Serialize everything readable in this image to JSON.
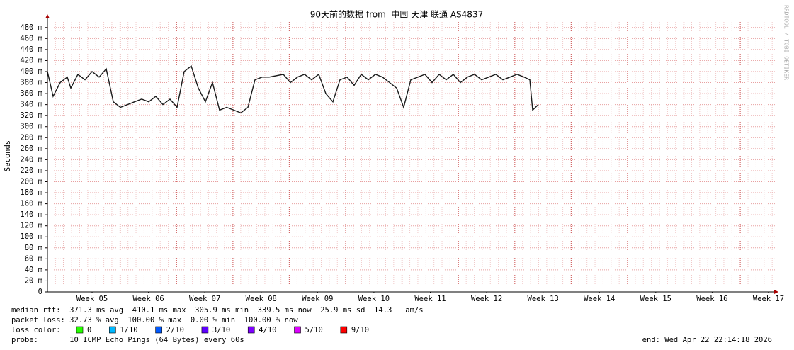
{
  "chart_data": {
    "type": "line",
    "title": "90天前的数据 from  中国 天津 联通 AS4837",
    "y_label": "Seconds",
    "watermark": "RRDTOOL / TOBI OETIKER",
    "xlim": [
      4.208,
      17.126
    ],
    "xticks": [
      {
        "value": 5,
        "label": "Week 05"
      },
      {
        "value": 6,
        "label": "Week 06"
      },
      {
        "value": 7,
        "label": "Week 07"
      },
      {
        "value": 8,
        "label": "Week 08"
      },
      {
        "value": 9,
        "label": "Week 09"
      },
      {
        "value": 10,
        "label": "Week 10"
      },
      {
        "value": 11,
        "label": "Week 11"
      },
      {
        "value": 12,
        "label": "Week 12"
      },
      {
        "value": 13,
        "label": "Week 13"
      },
      {
        "value": 14,
        "label": "Week 14"
      },
      {
        "value": 15,
        "label": "Week 15"
      },
      {
        "value": 16,
        "label": "Week 16"
      },
      {
        "value": 17,
        "label": "Week 17"
      }
    ],
    "ylim": [
      0,
      0.49
    ],
    "yticks": [
      0,
      {
        "value": 0.02,
        "label": "20 m"
      },
      {
        "value": 0.04,
        "label": "40 m"
      },
      {
        "value": 0.06,
        "label": "60 m"
      },
      {
        "value": 0.08,
        "label": "80 m"
      },
      {
        "value": 0.1,
        "label": "100 m"
      },
      {
        "value": 0.12,
        "label": "120 m"
      },
      {
        "value": 0.14,
        "label": "140 m"
      },
      {
        "value": 0.16,
        "label": "160 m"
      },
      {
        "value": 0.18,
        "label": "180 m"
      },
      {
        "value": 0.2,
        "label": "200 m"
      },
      {
        "value": 0.22,
        "label": "220 m"
      },
      {
        "value": 0.24,
        "label": "240 m"
      },
      {
        "value": 0.26,
        "label": "260 m"
      },
      {
        "value": 0.28,
        "label": "280 m"
      },
      {
        "value": 0.3,
        "label": "300 m"
      },
      {
        "value": 0.32,
        "label": "320 m"
      },
      {
        "value": 0.34,
        "label": "340 m"
      },
      {
        "value": 0.36,
        "label": "360 m"
      },
      {
        "value": 0.38,
        "label": "380 m"
      },
      {
        "value": 0.4,
        "label": "400 m"
      },
      {
        "value": 0.42,
        "label": "420 m"
      },
      {
        "value": 0.44,
        "label": "440 m"
      },
      {
        "value": 0.46,
        "label": "460 m"
      },
      {
        "value": 0.48,
        "label": "480 m"
      }
    ],
    "grid": true,
    "x": [
      4.208,
      4.309,
      4.434,
      4.56,
      4.623,
      4.748,
      4.874,
      5.0,
      5.125,
      5.251,
      5.377,
      5.502,
      5.628,
      5.754,
      5.879,
      6.005,
      6.131,
      6.256,
      6.382,
      6.508,
      6.633,
      6.759,
      6.885,
      7.01,
      7.136,
      7.262,
      7.387,
      7.513,
      7.639,
      7.764,
      7.89,
      8.016,
      8.141,
      8.393,
      8.518,
      8.644,
      8.769,
      8.895,
      9.021,
      9.146,
      9.272,
      9.398,
      9.523,
      9.649,
      9.775,
      9.9,
      10.026,
      10.152,
      10.277,
      10.403,
      10.528,
      10.654,
      10.78,
      10.905,
      11.031,
      11.157,
      11.282,
      11.408,
      11.534,
      11.659,
      11.785,
      11.911,
      12.036,
      12.162,
      12.288,
      12.413,
      12.539,
      12.665,
      12.765,
      12.816,
      12.916
    ],
    "series": [
      {
        "name": "median rtt",
        "color": "#1a1a1a",
        "values": [
          0.4,
          0.355,
          0.38,
          0.39,
          0.37,
          0.395,
          0.385,
          0.4,
          0.39,
          0.405,
          0.345,
          0.335,
          0.34,
          0.345,
          0.35,
          0.345,
          0.355,
          0.34,
          0.35,
          0.335,
          0.4,
          0.41,
          0.37,
          0.345,
          0.38,
          0.33,
          0.335,
          0.33,
          0.325,
          0.335,
          0.385,
          0.39,
          0.39,
          0.395,
          0.38,
          0.39,
          0.395,
          0.385,
          0.395,
          0.36,
          0.345,
          0.385,
          0.39,
          0.375,
          0.395,
          0.385,
          0.395,
          0.39,
          0.38,
          0.37,
          0.335,
          0.385,
          0.39,
          0.395,
          0.38,
          0.395,
          0.385,
          0.395,
          0.38,
          0.39,
          0.395,
          0.385,
          0.39,
          0.395,
          0.385,
          0.39,
          0.395,
          0.39,
          0.385,
          0.33,
          0.34
        ]
      }
    ],
    "loss_colors": [
      {
        "label": "0",
        "color": "#26ff00"
      },
      {
        "label": "1/10",
        "color": "#00b8ff"
      },
      {
        "label": "2/10",
        "color": "#0059ff"
      },
      {
        "label": "3/10",
        "color": "#5e00ff"
      },
      {
        "label": "4/10",
        "color": "#7e00ff"
      },
      {
        "label": "5/10",
        "color": "#dd00ff"
      },
      {
        "label": "9/10",
        "color": "#ff0000"
      }
    ]
  },
  "footer": {
    "median_rtt": "median rtt:  371.3 ms avg  410.1 ms max  305.9 ms min  339.5 ms now  25.9 ms sd  14.3   am/s",
    "packet_loss": "packet loss: 32.73 % avg  100.00 % max  0.00 % min  100.00 % now",
    "loss_color": "loss color:",
    "probe": "probe:       10 ICMP Echo Pings (64 Bytes) every 60s",
    "end": "end: Wed Apr 22 22:14:18 2026"
  }
}
